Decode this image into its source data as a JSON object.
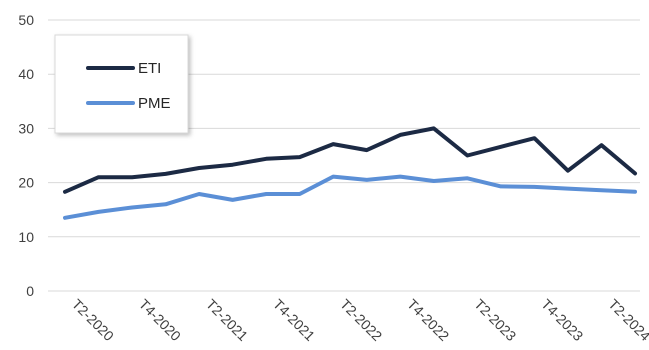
{
  "chart_data": {
    "type": "line",
    "title": "",
    "xlabel": "",
    "ylabel": "",
    "ylim": [
      0,
      50
    ],
    "yticks": [
      0,
      10,
      20,
      30,
      40,
      50
    ],
    "grid": "horizontal",
    "legend_position": "top-left",
    "x": [
      "T2-2020",
      "T3-2020",
      "T4-2020",
      "T1-2021",
      "T2-2021",
      "T3-2021",
      "T4-2021",
      "T1-2022",
      "T2-2022",
      "T3-2022",
      "T4-2022",
      "T1-2023",
      "T2-2023",
      "T3-2023",
      "T4-2023",
      "T1-2024",
      "T2-2024",
      "T3-2024"
    ],
    "xtick_labels": [
      "T2-2020",
      "T4-2020",
      "T2-2021",
      "T4-2021",
      "T2-2022",
      "T4-2022",
      "T2-2023",
      "T4-2023",
      "T2-2024"
    ],
    "series": [
      {
        "name": "ETI",
        "color": "#1c2a44",
        "values": [
          18.3,
          21.0,
          21.0,
          21.6,
          22.7,
          23.3,
          24.4,
          24.7,
          27.1,
          26.0,
          28.8,
          30.0,
          25.0,
          26.6,
          28.2,
          22.2,
          26.9,
          21.7
        ]
      },
      {
        "name": "PME",
        "color": "#5b8fd6",
        "values": [
          13.5,
          14.6,
          15.4,
          16.0,
          17.9,
          16.8,
          17.9,
          17.9,
          21.1,
          20.5,
          21.1,
          20.3,
          20.8,
          19.3,
          19.2,
          18.9,
          18.6,
          18.3
        ]
      }
    ]
  }
}
